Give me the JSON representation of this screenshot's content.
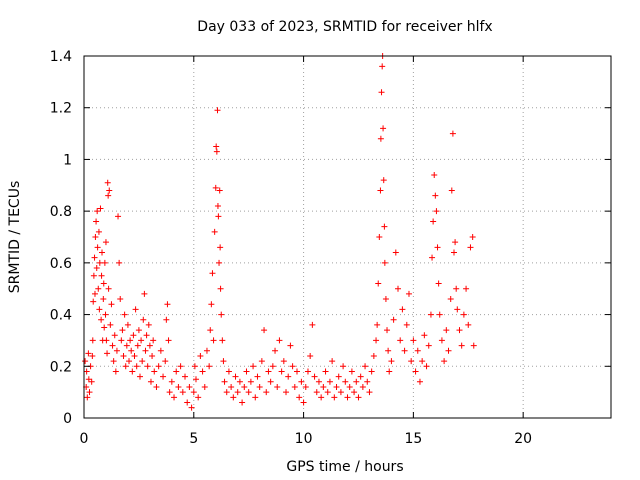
{
  "chart_data": {
    "type": "scatter",
    "title": "Day 033 of 2023, SRMTID for receiver hlfx",
    "xlabel": "GPS time / hours",
    "ylabel": "SRMTID / TECUs",
    "xlim": [
      0,
      24
    ],
    "ylim": [
      0,
      1.4
    ],
    "x_ticks": [
      0,
      5,
      10,
      15,
      20
    ],
    "x_tick_labels": [
      "0",
      "5",
      "10",
      "15",
      "20"
    ],
    "y_ticks": [
      0,
      0.2,
      0.4,
      0.6,
      0.8,
      1,
      1.2,
      1.4
    ],
    "y_tick_labels": [
      "0",
      "0.2",
      "0.4",
      "0.6",
      "0.8",
      "1",
      "1.2",
      "1.4"
    ],
    "grid": true,
    "marker": "+",
    "series": [
      {
        "name": "SRMTID",
        "color": "#ff0000",
        "points": [
          [
            0.05,
            0.22
          ],
          [
            0.1,
            0.12
          ],
          [
            0.12,
            0.18
          ],
          [
            0.15,
            0.08
          ],
          [
            0.2,
            0.25
          ],
          [
            0.22,
            0.15
          ],
          [
            0.25,
            0.1
          ],
          [
            0.3,
            0.2
          ],
          [
            0.35,
            0.14
          ],
          [
            0.38,
            0.24
          ],
          [
            0.4,
            0.3
          ],
          [
            0.42,
            0.45
          ],
          [
            0.45,
            0.55
          ],
          [
            0.48,
            0.62
          ],
          [
            0.5,
            0.48
          ],
          [
            0.52,
            0.7
          ],
          [
            0.55,
            0.76
          ],
          [
            0.58,
            0.58
          ],
          [
            0.6,
            0.8
          ],
          [
            0.62,
            0.66
          ],
          [
            0.65,
            0.5
          ],
          [
            0.68,
            0.72
          ],
          [
            0.7,
            0.42
          ],
          [
            0.72,
            0.6
          ],
          [
            0.75,
            0.81
          ],
          [
            0.78,
            0.38
          ],
          [
            0.8,
            0.55
          ],
          [
            0.82,
            0.64
          ],
          [
            0.85,
            0.3
          ],
          [
            0.88,
            0.46
          ],
          [
            0.9,
            0.52
          ],
          [
            0.92,
            0.35
          ],
          [
            0.95,
            0.6
          ],
          [
            0.98,
            0.4
          ],
          [
            1.0,
            0.68
          ],
          [
            1.02,
            0.3
          ],
          [
            1.05,
            0.25
          ],
          [
            1.08,
            0.91
          ],
          [
            1.1,
            0.86
          ],
          [
            1.12,
            0.5
          ],
          [
            1.15,
            0.88
          ],
          [
            1.2,
            0.36
          ],
          [
            1.25,
            0.44
          ],
          [
            1.3,
            0.28
          ],
          [
            1.35,
            0.22
          ],
          [
            1.4,
            0.32
          ],
          [
            1.45,
            0.18
          ],
          [
            1.5,
            0.26
          ],
          [
            1.55,
            0.78
          ],
          [
            1.6,
            0.6
          ],
          [
            1.65,
            0.46
          ],
          [
            1.7,
            0.3
          ],
          [
            1.75,
            0.34
          ],
          [
            1.8,
            0.24
          ],
          [
            1.85,
            0.4
          ],
          [
            1.9,
            0.2
          ],
          [
            1.95,
            0.28
          ],
          [
            2.0,
            0.36
          ],
          [
            2.05,
            0.22
          ],
          [
            2.1,
            0.3
          ],
          [
            2.15,
            0.26
          ],
          [
            2.2,
            0.18
          ],
          [
            2.25,
            0.32
          ],
          [
            2.3,
            0.24
          ],
          [
            2.35,
            0.42
          ],
          [
            2.4,
            0.2
          ],
          [
            2.45,
            0.28
          ],
          [
            2.5,
            0.34
          ],
          [
            2.55,
            0.16
          ],
          [
            2.6,
            0.3
          ],
          [
            2.65,
            0.22
          ],
          [
            2.7,
            0.38
          ],
          [
            2.75,
            0.48
          ],
          [
            2.8,
            0.26
          ],
          [
            2.85,
            0.32
          ],
          [
            2.9,
            0.2
          ],
          [
            2.95,
            0.36
          ],
          [
            3.0,
            0.28
          ],
          [
            3.05,
            0.14
          ],
          [
            3.1,
            0.24
          ],
          [
            3.15,
            0.3
          ],
          [
            3.2,
            0.18
          ],
          [
            3.3,
            0.12
          ],
          [
            3.4,
            0.2
          ],
          [
            3.5,
            0.26
          ],
          [
            3.6,
            0.16
          ],
          [
            3.7,
            0.22
          ],
          [
            3.75,
            0.38
          ],
          [
            3.8,
            0.44
          ],
          [
            3.85,
            0.3
          ],
          [
            3.9,
            0.1
          ],
          [
            4.0,
            0.14
          ],
          [
            4.1,
            0.08
          ],
          [
            4.2,
            0.18
          ],
          [
            4.3,
            0.12
          ],
          [
            4.4,
            0.2
          ],
          [
            4.5,
            0.1
          ],
          [
            4.6,
            0.16
          ],
          [
            4.7,
            0.06
          ],
          [
            4.8,
            0.12
          ],
          [
            4.9,
            0.04
          ],
          [
            5.0,
            0.1
          ],
          [
            5.05,
            0.2
          ],
          [
            5.1,
            0.15
          ],
          [
            5.2,
            0.08
          ],
          [
            5.3,
            0.24
          ],
          [
            5.4,
            0.18
          ],
          [
            5.5,
            0.12
          ],
          [
            5.6,
            0.26
          ],
          [
            5.7,
            0.2
          ],
          [
            5.75,
            0.34
          ],
          [
            5.8,
            0.44
          ],
          [
            5.85,
            0.56
          ],
          [
            5.9,
            0.3
          ],
          [
            5.95,
            0.72
          ],
          [
            6.0,
            0.89
          ],
          [
            6.02,
            1.05
          ],
          [
            6.05,
            1.03
          ],
          [
            6.08,
            1.19
          ],
          [
            6.1,
            0.82
          ],
          [
            6.12,
            0.78
          ],
          [
            6.15,
            0.6
          ],
          [
            6.18,
            0.88
          ],
          [
            6.2,
            0.66
          ],
          [
            6.22,
            0.5
          ],
          [
            6.25,
            0.4
          ],
          [
            6.3,
            0.3
          ],
          [
            6.35,
            0.22
          ],
          [
            6.4,
            0.14
          ],
          [
            6.5,
            0.1
          ],
          [
            6.6,
            0.18
          ],
          [
            6.7,
            0.12
          ],
          [
            6.8,
            0.08
          ],
          [
            6.9,
            0.16
          ],
          [
            7.0,
            0.1
          ],
          [
            7.1,
            0.14
          ],
          [
            7.2,
            0.06
          ],
          [
            7.3,
            0.12
          ],
          [
            7.4,
            0.18
          ],
          [
            7.5,
            0.1
          ],
          [
            7.6,
            0.14
          ],
          [
            7.7,
            0.2
          ],
          [
            7.8,
            0.08
          ],
          [
            7.9,
            0.16
          ],
          [
            8.0,
            0.12
          ],
          [
            8.1,
            0.22
          ],
          [
            8.2,
            0.34
          ],
          [
            8.3,
            0.1
          ],
          [
            8.4,
            0.18
          ],
          [
            8.5,
            0.14
          ],
          [
            8.6,
            0.2
          ],
          [
            8.7,
            0.26
          ],
          [
            8.8,
            0.12
          ],
          [
            8.9,
            0.3
          ],
          [
            9.0,
            0.18
          ],
          [
            9.1,
            0.22
          ],
          [
            9.2,
            0.1
          ],
          [
            9.3,
            0.16
          ],
          [
            9.4,
            0.28
          ],
          [
            9.5,
            0.2
          ],
          [
            9.6,
            0.12
          ],
          [
            9.7,
            0.18
          ],
          [
            9.8,
            0.08
          ],
          [
            9.9,
            0.14
          ],
          [
            10.0,
            0.06
          ],
          [
            10.1,
            0.12
          ],
          [
            10.2,
            0.18
          ],
          [
            10.3,
            0.24
          ],
          [
            10.4,
            0.36
          ],
          [
            10.5,
            0.16
          ],
          [
            10.6,
            0.1
          ],
          [
            10.7,
            0.14
          ],
          [
            10.8,
            0.08
          ],
          [
            10.9,
            0.12
          ],
          [
            11.0,
            0.18
          ],
          [
            11.1,
            0.1
          ],
          [
            11.2,
            0.14
          ],
          [
            11.3,
            0.22
          ],
          [
            11.4,
            0.08
          ],
          [
            11.5,
            0.12
          ],
          [
            11.6,
            0.16
          ],
          [
            11.7,
            0.1
          ],
          [
            11.8,
            0.2
          ],
          [
            11.9,
            0.14
          ],
          [
            12.0,
            0.08
          ],
          [
            12.1,
            0.12
          ],
          [
            12.2,
            0.18
          ],
          [
            12.3,
            0.1
          ],
          [
            12.4,
            0.14
          ],
          [
            12.5,
            0.08
          ],
          [
            12.6,
            0.16
          ],
          [
            12.7,
            0.12
          ],
          [
            12.8,
            0.2
          ],
          [
            12.9,
            0.14
          ],
          [
            13.0,
            0.1
          ],
          [
            13.1,
            0.18
          ],
          [
            13.2,
            0.24
          ],
          [
            13.3,
            0.3
          ],
          [
            13.35,
            0.36
          ],
          [
            13.4,
            0.52
          ],
          [
            13.45,
            0.7
          ],
          [
            13.5,
            0.88
          ],
          [
            13.52,
            1.08
          ],
          [
            13.55,
            1.26
          ],
          [
            13.58,
            1.36
          ],
          [
            13.6,
            1.4
          ],
          [
            13.62,
            1.12
          ],
          [
            13.65,
            0.92
          ],
          [
            13.68,
            0.74
          ],
          [
            13.7,
            0.6
          ],
          [
            13.75,
            0.46
          ],
          [
            13.8,
            0.34
          ],
          [
            13.85,
            0.26
          ],
          [
            13.9,
            0.18
          ],
          [
            14.0,
            0.22
          ],
          [
            14.1,
            0.38
          ],
          [
            14.2,
            0.64
          ],
          [
            14.3,
            0.5
          ],
          [
            14.4,
            0.3
          ],
          [
            14.5,
            0.42
          ],
          [
            14.6,
            0.26
          ],
          [
            14.7,
            0.36
          ],
          [
            14.8,
            0.48
          ],
          [
            14.9,
            0.22
          ],
          [
            15.0,
            0.3
          ],
          [
            15.1,
            0.18
          ],
          [
            15.2,
            0.26
          ],
          [
            15.3,
            0.14
          ],
          [
            15.4,
            0.22
          ],
          [
            15.5,
            0.32
          ],
          [
            15.6,
            0.2
          ],
          [
            15.7,
            0.28
          ],
          [
            15.8,
            0.4
          ],
          [
            15.85,
            0.62
          ],
          [
            15.9,
            0.76
          ],
          [
            15.95,
            0.94
          ],
          [
            16.0,
            0.86
          ],
          [
            16.05,
            0.8
          ],
          [
            16.1,
            0.66
          ],
          [
            16.15,
            0.52
          ],
          [
            16.2,
            0.4
          ],
          [
            16.3,
            0.3
          ],
          [
            16.4,
            0.22
          ],
          [
            16.5,
            0.34
          ],
          [
            16.6,
            0.26
          ],
          [
            16.7,
            0.46
          ],
          [
            16.75,
            0.88
          ],
          [
            16.8,
            1.1
          ],
          [
            16.85,
            0.64
          ],
          [
            16.9,
            0.68
          ],
          [
            16.95,
            0.5
          ],
          [
            17.0,
            0.42
          ],
          [
            17.1,
            0.34
          ],
          [
            17.2,
            0.28
          ],
          [
            17.3,
            0.4
          ],
          [
            17.4,
            0.5
          ],
          [
            17.5,
            0.36
          ],
          [
            17.6,
            0.66
          ],
          [
            17.7,
            0.7
          ],
          [
            17.75,
            0.28
          ]
        ]
      }
    ]
  }
}
